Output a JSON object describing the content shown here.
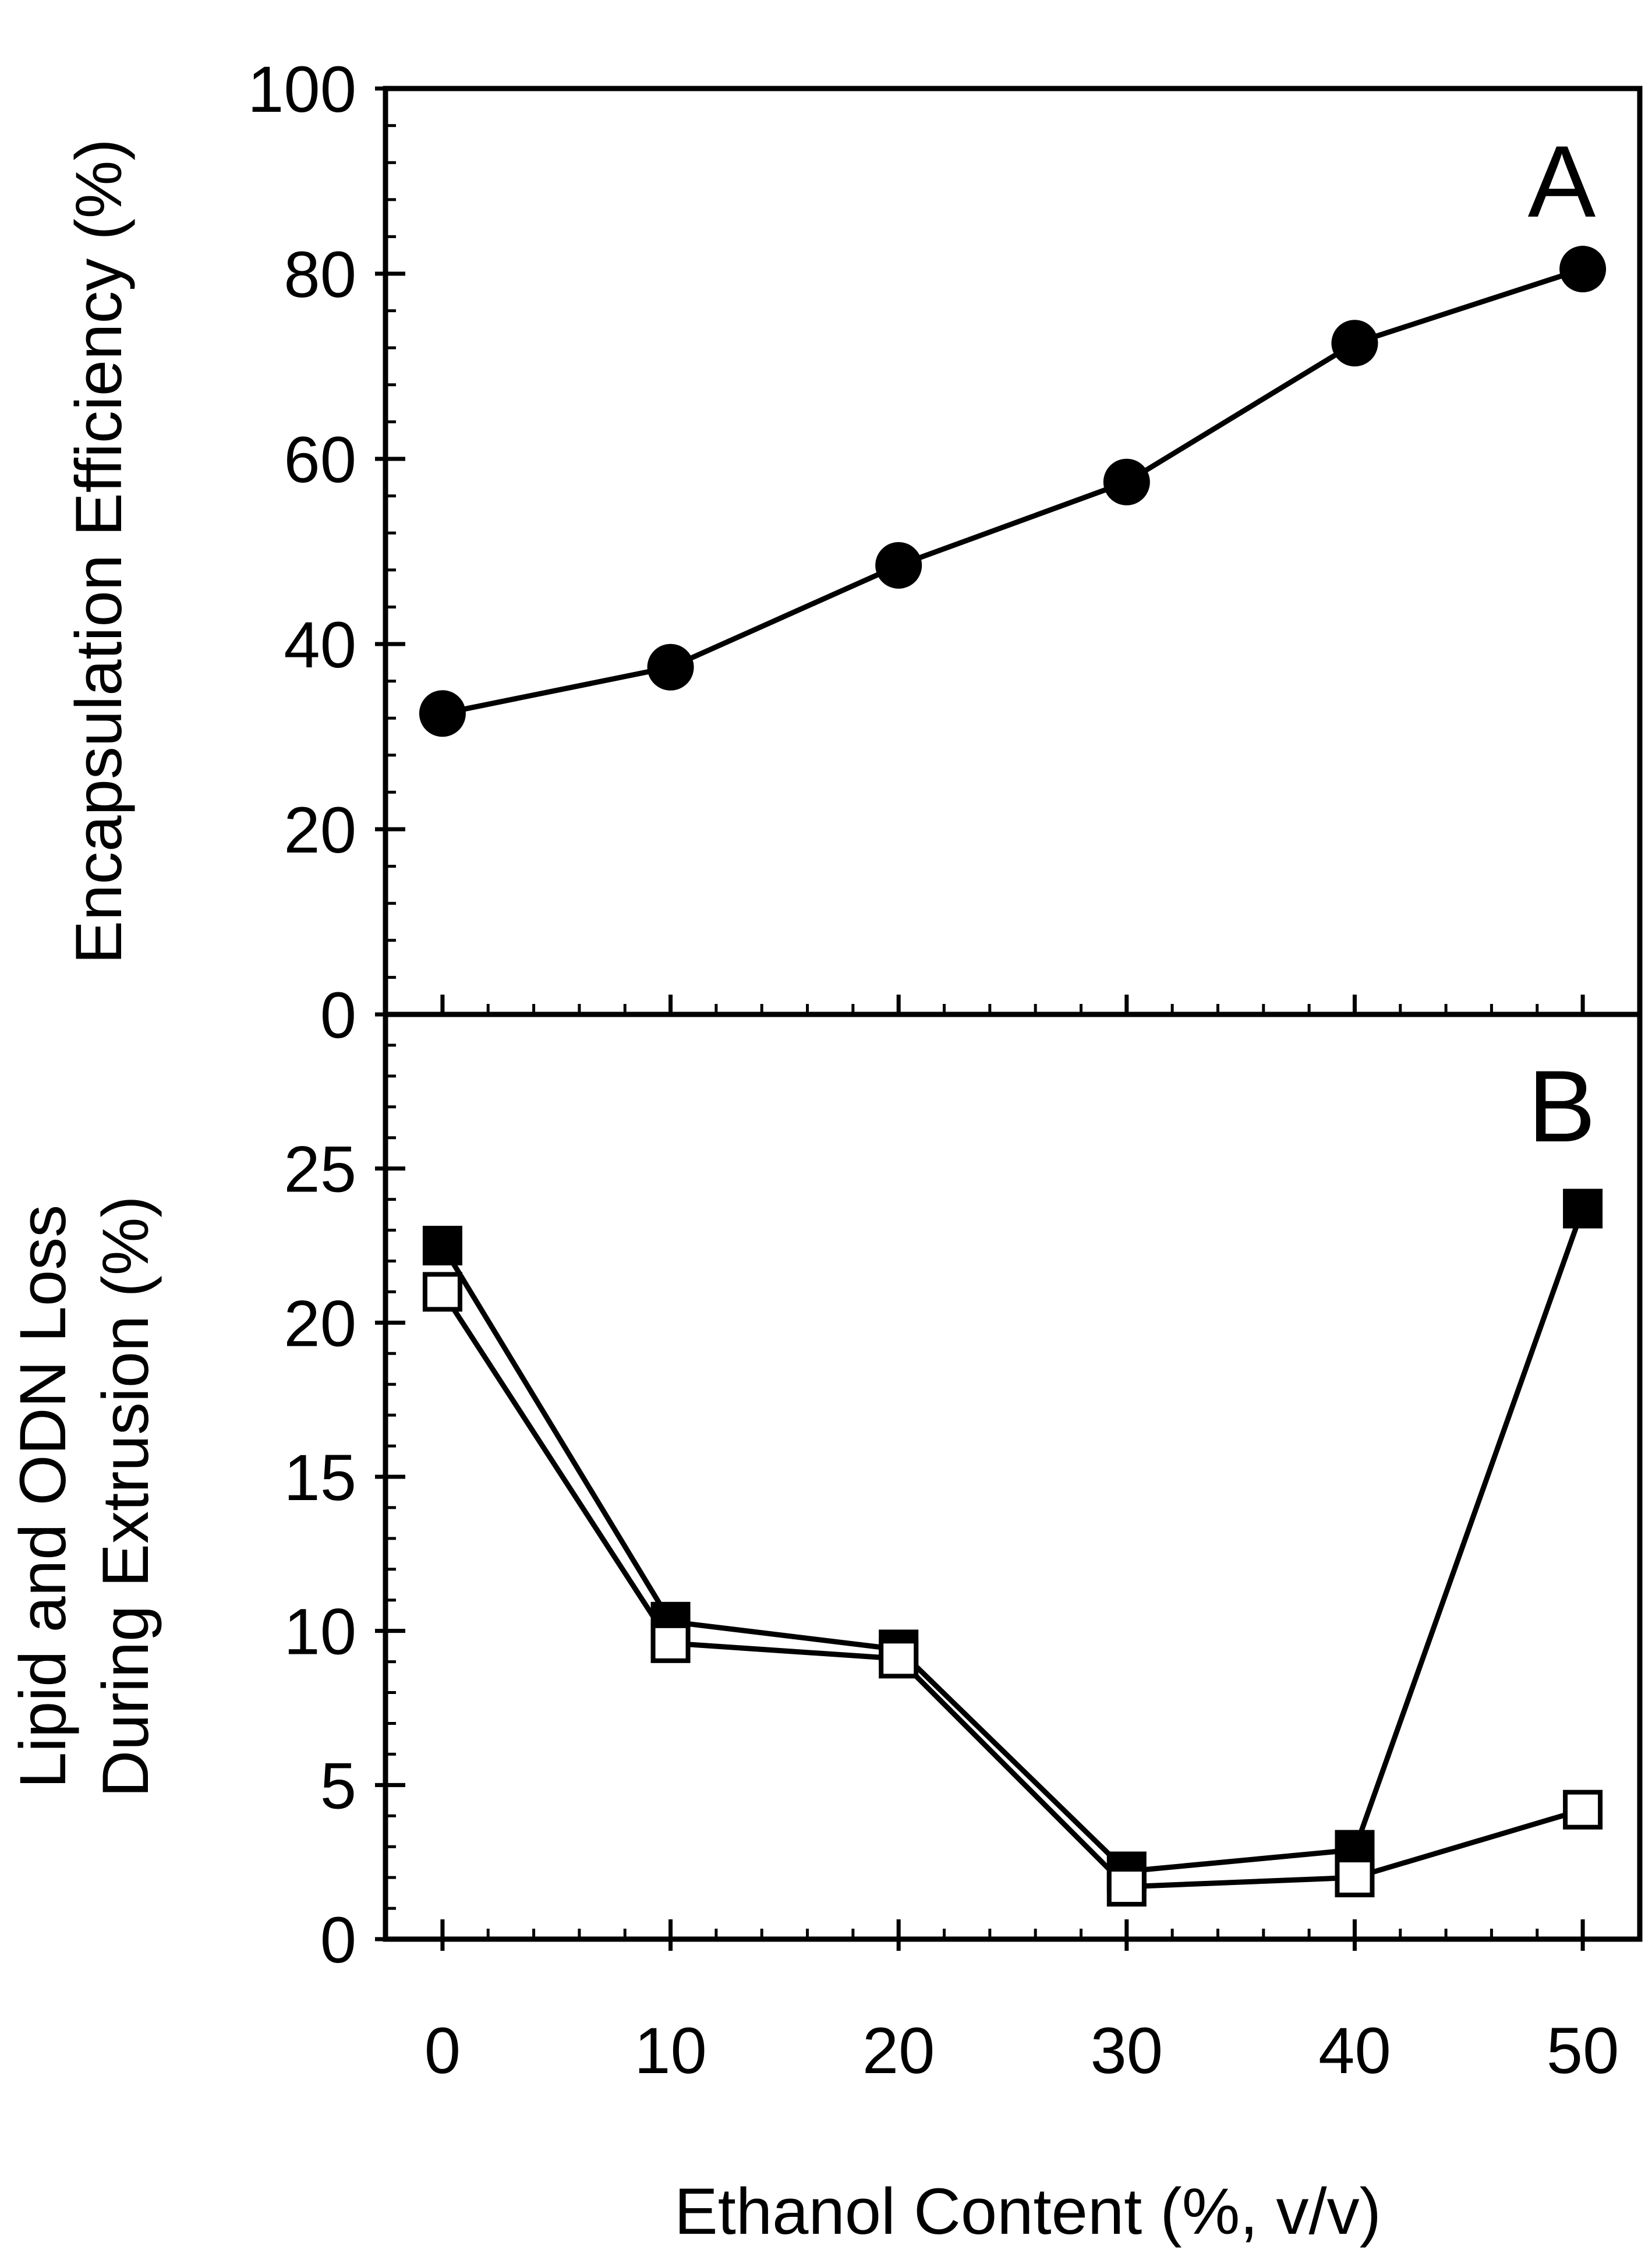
{
  "chart_data": [
    {
      "panel": "A",
      "type": "line",
      "title": "",
      "panel_label": "A",
      "xlabel": "Ethanol Content (%, v/v)",
      "ylabel": "Encapsulation Efficiency (%)",
      "xlim": [
        -2.5,
        52.5
      ],
      "ylim": [
        0,
        100
      ],
      "x_ticks": [
        0,
        10,
        20,
        30,
        40,
        50
      ],
      "y_ticks": [
        0,
        20,
        40,
        60,
        80,
        100
      ],
      "y_tick_labels": [
        "0",
        "20",
        "40",
        "60",
        "80",
        "100"
      ],
      "series": [
        {
          "name": "Encapsulation efficiency",
          "marker": "filled-circle",
          "x": [
            0,
            10,
            20,
            30,
            40,
            50
          ],
          "y": [
            32.5,
            37.5,
            48.5,
            57.5,
            72.5,
            80.5
          ]
        }
      ]
    },
    {
      "panel": "B",
      "type": "line",
      "title": "",
      "panel_label": "B",
      "xlabel": "Ethanol Content (%, v/v)",
      "ylabel_lines": [
        "Lipid and ODN Loss",
        "During Extrusion (%)"
      ],
      "xlim": [
        -2.5,
        52.5
      ],
      "ylim": [
        0,
        30
      ],
      "x_ticks": [
        0,
        10,
        20,
        30,
        40,
        50
      ],
      "x_tick_labels": [
        "0",
        "10",
        "20",
        "30",
        "40",
        "50"
      ],
      "y_ticks": [
        0,
        5,
        10,
        15,
        20,
        25
      ],
      "y_tick_labels": [
        "0",
        "5",
        "10",
        "15",
        "20",
        "25"
      ],
      "series": [
        {
          "name": "Series 1 (filled squares)",
          "marker": "filled-square",
          "x": [
            0,
            10,
            20,
            30,
            40,
            50
          ],
          "y": [
            22.5,
            10.3,
            9.4,
            2.2,
            2.9,
            23.7
          ]
        },
        {
          "name": "Series 2 (open squares)",
          "marker": "open-square",
          "x": [
            0,
            10,
            20,
            30,
            40,
            50
          ],
          "y": [
            21.0,
            9.6,
            9.1,
            1.7,
            2.0,
            4.2
          ]
        }
      ]
    }
  ]
}
